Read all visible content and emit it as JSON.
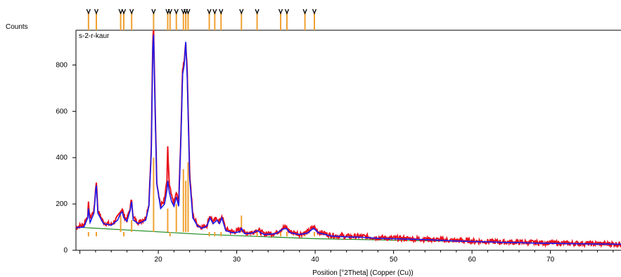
{
  "chart_data": {
    "type": "line",
    "sample_label": "s-2-r-kaur",
    "ylabel": "Counts",
    "xlabel": "Position [°2Theta] (Copper (Cu))",
    "xlim": [
      9.5,
      79
    ],
    "ylim": [
      0,
      950
    ],
    "x_ticks": [
      20,
      30,
      40,
      50,
      60,
      70
    ],
    "y_ticks": [
      0,
      200,
      400,
      600,
      800
    ],
    "grid": false,
    "colors": {
      "observed": "#e8121b",
      "calculated": "#1a1af0",
      "background": "#1f8a1f",
      "peak_marker": "#f0a030",
      "marker_glyph": "#000000"
    },
    "peak_positions": [
      11.1,
      12.1,
      15.2,
      15.6,
      16.6,
      19.4,
      21.2,
      21.5,
      22.3,
      23.2,
      23.5,
      23.8,
      26.5,
      27.2,
      28.0,
      30.6,
      32.6,
      35.6,
      36.4,
      38.7,
      39.9
    ],
    "peak_stick_heights": [
      60,
      60,
      150,
      60,
      130,
      400,
      180,
      60,
      200,
      350,
      300,
      380,
      60,
      60,
      60,
      150,
      60,
      60,
      60,
      60,
      60
    ],
    "observed_profile": [
      [
        9.5,
        100
      ],
      [
        10.5,
        110
      ],
      [
        11.0,
        150
      ],
      [
        11.1,
        200
      ],
      [
        11.3,
        140
      ],
      [
        11.8,
        170
      ],
      [
        12.0,
        260
      ],
      [
        12.1,
        300
      ],
      [
        12.3,
        170
      ],
      [
        13.0,
        120
      ],
      [
        14.0,
        110
      ],
      [
        14.8,
        140
      ],
      [
        15.2,
        170
      ],
      [
        15.4,
        180
      ],
      [
        15.6,
        150
      ],
      [
        16.0,
        130
      ],
      [
        16.4,
        180
      ],
      [
        16.6,
        220
      ],
      [
        16.8,
        140
      ],
      [
        17.5,
        120
      ],
      [
        18.4,
        140
      ],
      [
        18.8,
        200
      ],
      [
        19.1,
        440
      ],
      [
        19.3,
        900
      ],
      [
        19.4,
        950
      ],
      [
        19.6,
        620
      ],
      [
        19.8,
        300
      ],
      [
        20.3,
        190
      ],
      [
        20.8,
        220
      ],
      [
        21.1,
        300
      ],
      [
        21.2,
        440
      ],
      [
        21.4,
        280
      ],
      [
        21.7,
        230
      ],
      [
        22.0,
        200
      ],
      [
        22.3,
        250
      ],
      [
        22.6,
        200
      ],
      [
        22.9,
        520
      ],
      [
        23.1,
        780
      ],
      [
        23.3,
        820
      ],
      [
        23.5,
        900
      ],
      [
        23.7,
        760
      ],
      [
        24.0,
        330
      ],
      [
        24.4,
        150
      ],
      [
        25.0,
        110
      ],
      [
        25.6,
        100
      ],
      [
        26.2,
        110
      ],
      [
        26.6,
        150
      ],
      [
        27.0,
        120
      ],
      [
        27.5,
        140
      ],
      [
        27.8,
        120
      ],
      [
        28.1,
        150
      ],
      [
        28.6,
        90
      ],
      [
        29.5,
        80
      ],
      [
        30.4,
        85
      ],
      [
        30.6,
        100
      ],
      [
        31.0,
        75
      ],
      [
        32.0,
        78
      ],
      [
        32.6,
        90
      ],
      [
        33.5,
        70
      ],
      [
        35.0,
        75
      ],
      [
        35.8,
        95
      ],
      [
        36.3,
        100
      ],
      [
        36.8,
        80
      ],
      [
        38.0,
        70
      ],
      [
        39.0,
        78
      ],
      [
        39.8,
        100
      ],
      [
        40.4,
        80
      ],
      [
        42.0,
        65
      ],
      [
        44.0,
        60
      ],
      [
        46.0,
        60
      ],
      [
        48.0,
        55
      ],
      [
        50.0,
        52
      ],
      [
        52.0,
        50
      ],
      [
        54.0,
        48
      ],
      [
        56.0,
        45
      ],
      [
        58.0,
        42
      ],
      [
        60.0,
        40
      ],
      [
        62.0,
        38
      ],
      [
        64.0,
        36
      ],
      [
        66.0,
        35
      ],
      [
        68.0,
        33
      ],
      [
        70.0,
        32
      ],
      [
        72.0,
        30
      ],
      [
        74.0,
        30
      ],
      [
        76.0,
        28
      ],
      [
        79.0,
        27
      ]
    ],
    "calculated_profile": [
      [
        9.5,
        98
      ],
      [
        10.5,
        100
      ],
      [
        11.0,
        140
      ],
      [
        11.1,
        180
      ],
      [
        11.3,
        120
      ],
      [
        11.8,
        160
      ],
      [
        12.0,
        250
      ],
      [
        12.1,
        280
      ],
      [
        12.3,
        160
      ],
      [
        13.0,
        115
      ],
      [
        14.0,
        108
      ],
      [
        14.8,
        130
      ],
      [
        15.2,
        160
      ],
      [
        15.4,
        165
      ],
      [
        15.6,
        140
      ],
      [
        16.0,
        125
      ],
      [
        16.4,
        170
      ],
      [
        16.6,
        210
      ],
      [
        16.8,
        130
      ],
      [
        17.5,
        115
      ],
      [
        18.4,
        130
      ],
      [
        18.8,
        190
      ],
      [
        19.1,
        420
      ],
      [
        19.3,
        880
      ],
      [
        19.4,
        930
      ],
      [
        19.6,
        600
      ],
      [
        19.8,
        290
      ],
      [
        20.3,
        180
      ],
      [
        20.8,
        200
      ],
      [
        21.1,
        260
      ],
      [
        21.2,
        300
      ],
      [
        21.4,
        250
      ],
      [
        21.7,
        210
      ],
      [
        22.0,
        190
      ],
      [
        22.3,
        230
      ],
      [
        22.6,
        190
      ],
      [
        22.9,
        500
      ],
      [
        23.1,
        760
      ],
      [
        23.3,
        800
      ],
      [
        23.5,
        900
      ],
      [
        23.7,
        740
      ],
      [
        24.0,
        310
      ],
      [
        24.4,
        140
      ],
      [
        25.0,
        105
      ],
      [
        25.6,
        95
      ],
      [
        26.2,
        105
      ],
      [
        26.6,
        140
      ],
      [
        27.0,
        115
      ],
      [
        27.5,
        130
      ],
      [
        27.8,
        115
      ],
      [
        28.1,
        140
      ],
      [
        28.6,
        85
      ],
      [
        29.5,
        75
      ],
      [
        30.4,
        80
      ],
      [
        30.6,
        95
      ],
      [
        31.0,
        72
      ],
      [
        32.0,
        74
      ],
      [
        32.6,
        85
      ],
      [
        33.5,
        68
      ],
      [
        35.0,
        72
      ],
      [
        35.8,
        90
      ],
      [
        36.3,
        95
      ],
      [
        36.8,
        76
      ],
      [
        38.0,
        68
      ],
      [
        39.0,
        74
      ],
      [
        39.8,
        95
      ],
      [
        40.4,
        76
      ],
      [
        42.0,
        62
      ],
      [
        44.0,
        58
      ],
      [
        46.0,
        56
      ],
      [
        48.0,
        52
      ],
      [
        50.0,
        50
      ],
      [
        52.0,
        48
      ],
      [
        54.0,
        46
      ],
      [
        56.0,
        43
      ],
      [
        58.0,
        40
      ],
      [
        60.0,
        38
      ],
      [
        62.0,
        36
      ],
      [
        64.0,
        34
      ],
      [
        66.0,
        33
      ],
      [
        68.0,
        31
      ],
      [
        70.0,
        30
      ],
      [
        72.0,
        29
      ],
      [
        74.0,
        28
      ],
      [
        76.0,
        27
      ],
      [
        79.0,
        26
      ]
    ],
    "background_line": [
      [
        9.5,
        100
      ],
      [
        25,
        70
      ],
      [
        40,
        50
      ],
      [
        79,
        25
      ]
    ]
  }
}
